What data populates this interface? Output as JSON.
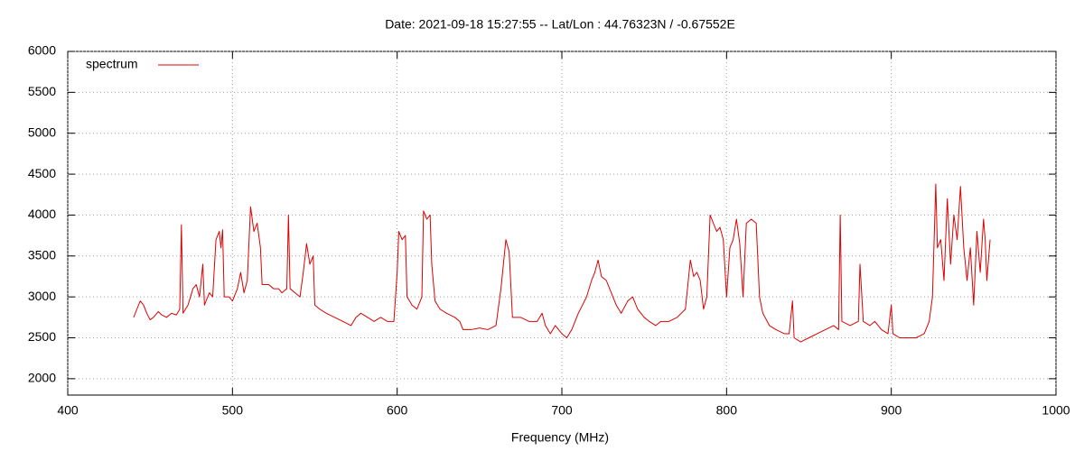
{
  "chart_data": {
    "type": "line",
    "title": "Date: 2021-09-18 15:27:55  --  Lat/Lon : 44.76323N / -0.67552E",
    "x_label": "Frequency (MHz)",
    "legend": "top-left",
    "grid": true,
    "xlim": [
      400,
      1000
    ],
    "xticks": [
      400,
      500,
      600,
      700,
      800,
      900,
      1000
    ],
    "ylim": [
      1800,
      6000
    ],
    "yticks": [
      2000,
      2500,
      3000,
      3500,
      4000,
      4500,
      5000,
      5500,
      6000
    ],
    "x": [
      440,
      442,
      444,
      446,
      448,
      450,
      452,
      455,
      457,
      460,
      463,
      466,
      468,
      469,
      470,
      473,
      476,
      478,
      480,
      482,
      483,
      486,
      488,
      490,
      492,
      493,
      494,
      495,
      498,
      500,
      503,
      505,
      507,
      509,
      511,
      513,
      515,
      517,
      518,
      522,
      525,
      528,
      530,
      533,
      534,
      535,
      538,
      541,
      543,
      545,
      547,
      549,
      550,
      553,
      557,
      562,
      567,
      572,
      575,
      578,
      582,
      586,
      590,
      594,
      598,
      600,
      601,
      603,
      605,
      606,
      609,
      612,
      615,
      616,
      618,
      620,
      621,
      623,
      626,
      630,
      635,
      638,
      640,
      645,
      650,
      655,
      660,
      663,
      666,
      668,
      670,
      675,
      680,
      685,
      688,
      690,
      693,
      696,
      700,
      703,
      706,
      710,
      715,
      718,
      720,
      722,
      724,
      727,
      730,
      733,
      736,
      740,
      743,
      746,
      750,
      753,
      757,
      760,
      765,
      770,
      775,
      778,
      780,
      782,
      784,
      786,
      788,
      790,
      792,
      794,
      796,
      798,
      800,
      802,
      804,
      806,
      808,
      810,
      812,
      815,
      818,
      820,
      822,
      826,
      830,
      835,
      838,
      840,
      841,
      845,
      850,
      855,
      860,
      865,
      868,
      869,
      870,
      875,
      880,
      881,
      883,
      887,
      890,
      894,
      898,
      900,
      901,
      905,
      910,
      915,
      920,
      923,
      925,
      927,
      928,
      930,
      932,
      934,
      936,
      938,
      940,
      942,
      944,
      946,
      948,
      950,
      952,
      954,
      956,
      957,
      958,
      960
    ],
    "series": [
      {
        "name": "spectrum",
        "color": "#dd0000",
        "values": [
          2750,
          2850,
          2950,
          2900,
          2800,
          2720,
          2750,
          2820,
          2780,
          2750,
          2800,
          2780,
          2850,
          3880,
          2800,
          2900,
          3100,
          3150,
          3000,
          3400,
          2900,
          3050,
          3000,
          3700,
          3800,
          3600,
          3820,
          3000,
          3000,
          2950,
          3100,
          3300,
          3050,
          3200,
          4100,
          3800,
          3900,
          3600,
          3150,
          3150,
          3100,
          3100,
          3050,
          3100,
          4000,
          3100,
          3050,
          3000,
          3300,
          3650,
          3400,
          3500,
          2900,
          2850,
          2800,
          2750,
          2700,
          2650,
          2750,
          2800,
          2750,
          2700,
          2750,
          2700,
          2700,
          3300,
          3800,
          3700,
          3750,
          3000,
          2900,
          2850,
          3000,
          4050,
          3950,
          4000,
          3400,
          2950,
          2850,
          2800,
          2750,
          2700,
          2600,
          2600,
          2620,
          2600,
          2650,
          3100,
          3700,
          3550,
          2750,
          2750,
          2700,
          2700,
          2800,
          2650,
          2550,
          2650,
          2550,
          2500,
          2600,
          2800,
          3000,
          3200,
          3300,
          3450,
          3250,
          3200,
          3050,
          2900,
          2800,
          2950,
          3000,
          2850,
          2750,
          2700,
          2650,
          2700,
          2700,
          2750,
          2850,
          3450,
          3250,
          3300,
          3200,
          2850,
          3000,
          4000,
          3900,
          3800,
          3850,
          3700,
          3000,
          3600,
          3700,
          3950,
          3650,
          3000,
          3900,
          3950,
          3900,
          3000,
          2800,
          2650,
          2600,
          2550,
          2550,
          2950,
          2500,
          2450,
          2500,
          2550,
          2600,
          2650,
          2600,
          4000,
          2700,
          2650,
          2700,
          3400,
          2700,
          2650,
          2700,
          2600,
          2550,
          2900,
          2550,
          2500,
          2500,
          2500,
          2550,
          2700,
          3000,
          4380,
          3600,
          3700,
          3200,
          4200,
          3400,
          4000,
          3700,
          4350,
          3600,
          3200,
          3600,
          2900,
          3800,
          3300,
          3950,
          3700,
          3200,
          3700
        ]
      }
    ]
  }
}
